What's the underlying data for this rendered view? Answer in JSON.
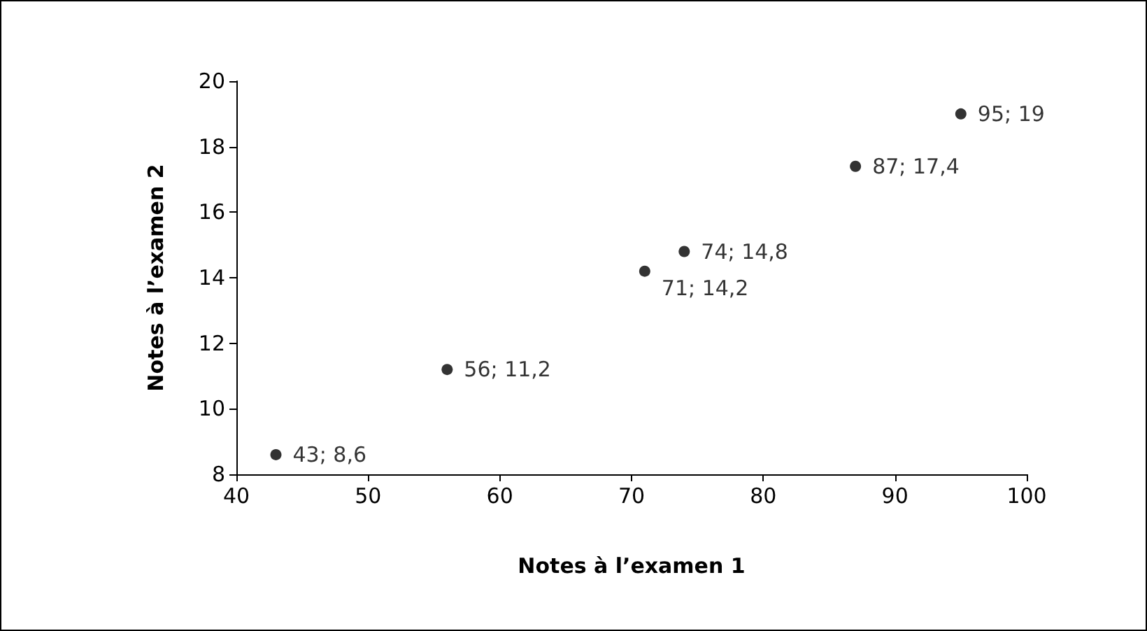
{
  "chart_data": {
    "type": "scatter",
    "xlabel": "Notes à l’examen 1",
    "ylabel": "Notes à l’examen 2",
    "x": [
      43,
      56,
      71,
      74,
      87,
      95
    ],
    "values": [
      8.6,
      11.2,
      14.2,
      14.8,
      17.4,
      19
    ],
    "value_labels": [
      "43; 8,6",
      "56; 11,2",
      "71; 14,2",
      "74; 14,8",
      "87; 17,4",
      "95; 19"
    ],
    "color": "#000000",
    "marker": "circle",
    "xlim": [
      40,
      100
    ],
    "xticks": [
      40,
      50,
      60,
      70,
      80,
      90,
      100
    ],
    "ylim": [
      8,
      20
    ],
    "yticks": [
      8,
      10,
      12,
      14,
      16,
      18,
      20
    ]
  }
}
